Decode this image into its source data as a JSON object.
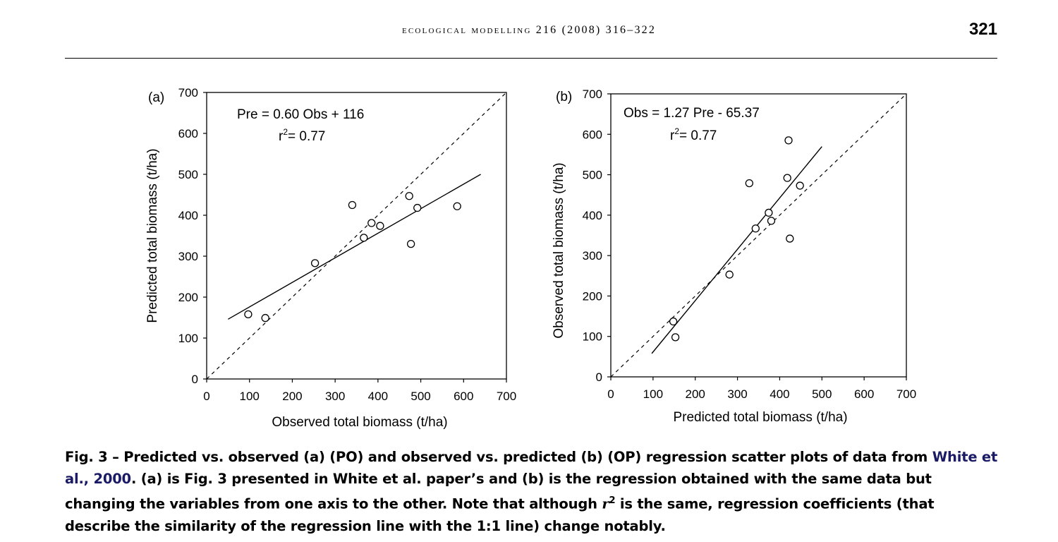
{
  "header": {
    "journal": "ECOLOGICAL MODELLING 216 (2008) 316–322",
    "page_number": "321"
  },
  "chart_data": [
    {
      "type": "scatter",
      "panel_label": "(a)",
      "title": "",
      "equation": "Pre = 0.60 Obs + 116",
      "r2_prefix": "r",
      "r2_exp": "2",
      "r2_value": "= 0.77",
      "xlabel": "Observed total biomass (t/ha)",
      "ylabel": "Predicted  total biomass (t/ha)",
      "xlim": [
        0,
        700
      ],
      "ylim": [
        0,
        700
      ],
      "xticks": [
        "0",
        "100",
        "200",
        "300",
        "400",
        "500",
        "600",
        "700"
      ],
      "yticks": [
        "0",
        "100",
        "200",
        "300",
        "400",
        "500",
        "600",
        "700"
      ],
      "points": [
        {
          "x": 97,
          "y": 158
        },
        {
          "x": 137,
          "y": 149
        },
        {
          "x": 253,
          "y": 283
        },
        {
          "x": 340,
          "y": 425
        },
        {
          "x": 367,
          "y": 345
        },
        {
          "x": 385,
          "y": 381
        },
        {
          "x": 405,
          "y": 374
        },
        {
          "x": 473,
          "y": 447
        },
        {
          "x": 477,
          "y": 330
        },
        {
          "x": 492,
          "y": 418
        },
        {
          "x": 585,
          "y": 422
        }
      ],
      "regression": {
        "x1": 50,
        "x2": 640,
        "slope": 0.6,
        "intercept": 116
      },
      "one_to_one": true
    },
    {
      "type": "scatter",
      "panel_label": "(b)",
      "title": "",
      "equation": "Obs = 1.27 Pre - 65.37",
      "r2_prefix": "r",
      "r2_exp": "2",
      "r2_value": "= 0.77",
      "xlabel": "Predicted  total biomass (t/ha)",
      "ylabel": "Observed total biomass (t/ha)",
      "xlim": [
        0,
        700
      ],
      "ylim": [
        0,
        700
      ],
      "xticks": [
        "0",
        "100",
        "200",
        "300",
        "400",
        "500",
        "600",
        "700"
      ],
      "yticks": [
        "0",
        "100",
        "200",
        "300",
        "400",
        "500",
        "600",
        "700"
      ],
      "points": [
        {
          "x": 148,
          "y": 137
        },
        {
          "x": 153,
          "y": 98
        },
        {
          "x": 281,
          "y": 253
        },
        {
          "x": 328,
          "y": 479
        },
        {
          "x": 343,
          "y": 367
        },
        {
          "x": 374,
          "y": 406
        },
        {
          "x": 380,
          "y": 386
        },
        {
          "x": 418,
          "y": 492
        },
        {
          "x": 421,
          "y": 585
        },
        {
          "x": 424,
          "y": 342
        },
        {
          "x": 448,
          "y": 473
        }
      ],
      "regression": {
        "x1": 97,
        "x2": 500,
        "slope": 1.27,
        "intercept": -65.37
      },
      "one_to_one": true
    }
  ],
  "caption": {
    "label": "Fig. 3 – ",
    "text1": "Predicted vs. observed (a) (PO) and observed vs. predicted (b) (OP) regression scatter plots of data from ",
    "cite1": "White et al.,",
    "cite2": "2000",
    "text2": ". (a) is Fig. 3 presented in White et al. paper’s and (b) is the regression obtained with the same data but changing the variables from one axis to the other. Note that although ",
    "r_symbol": "r",
    "r_exp": "2",
    "text3": " is the same, regression coefficients (that describe the similarity of the regression line with the 1:1 line) change notably."
  }
}
